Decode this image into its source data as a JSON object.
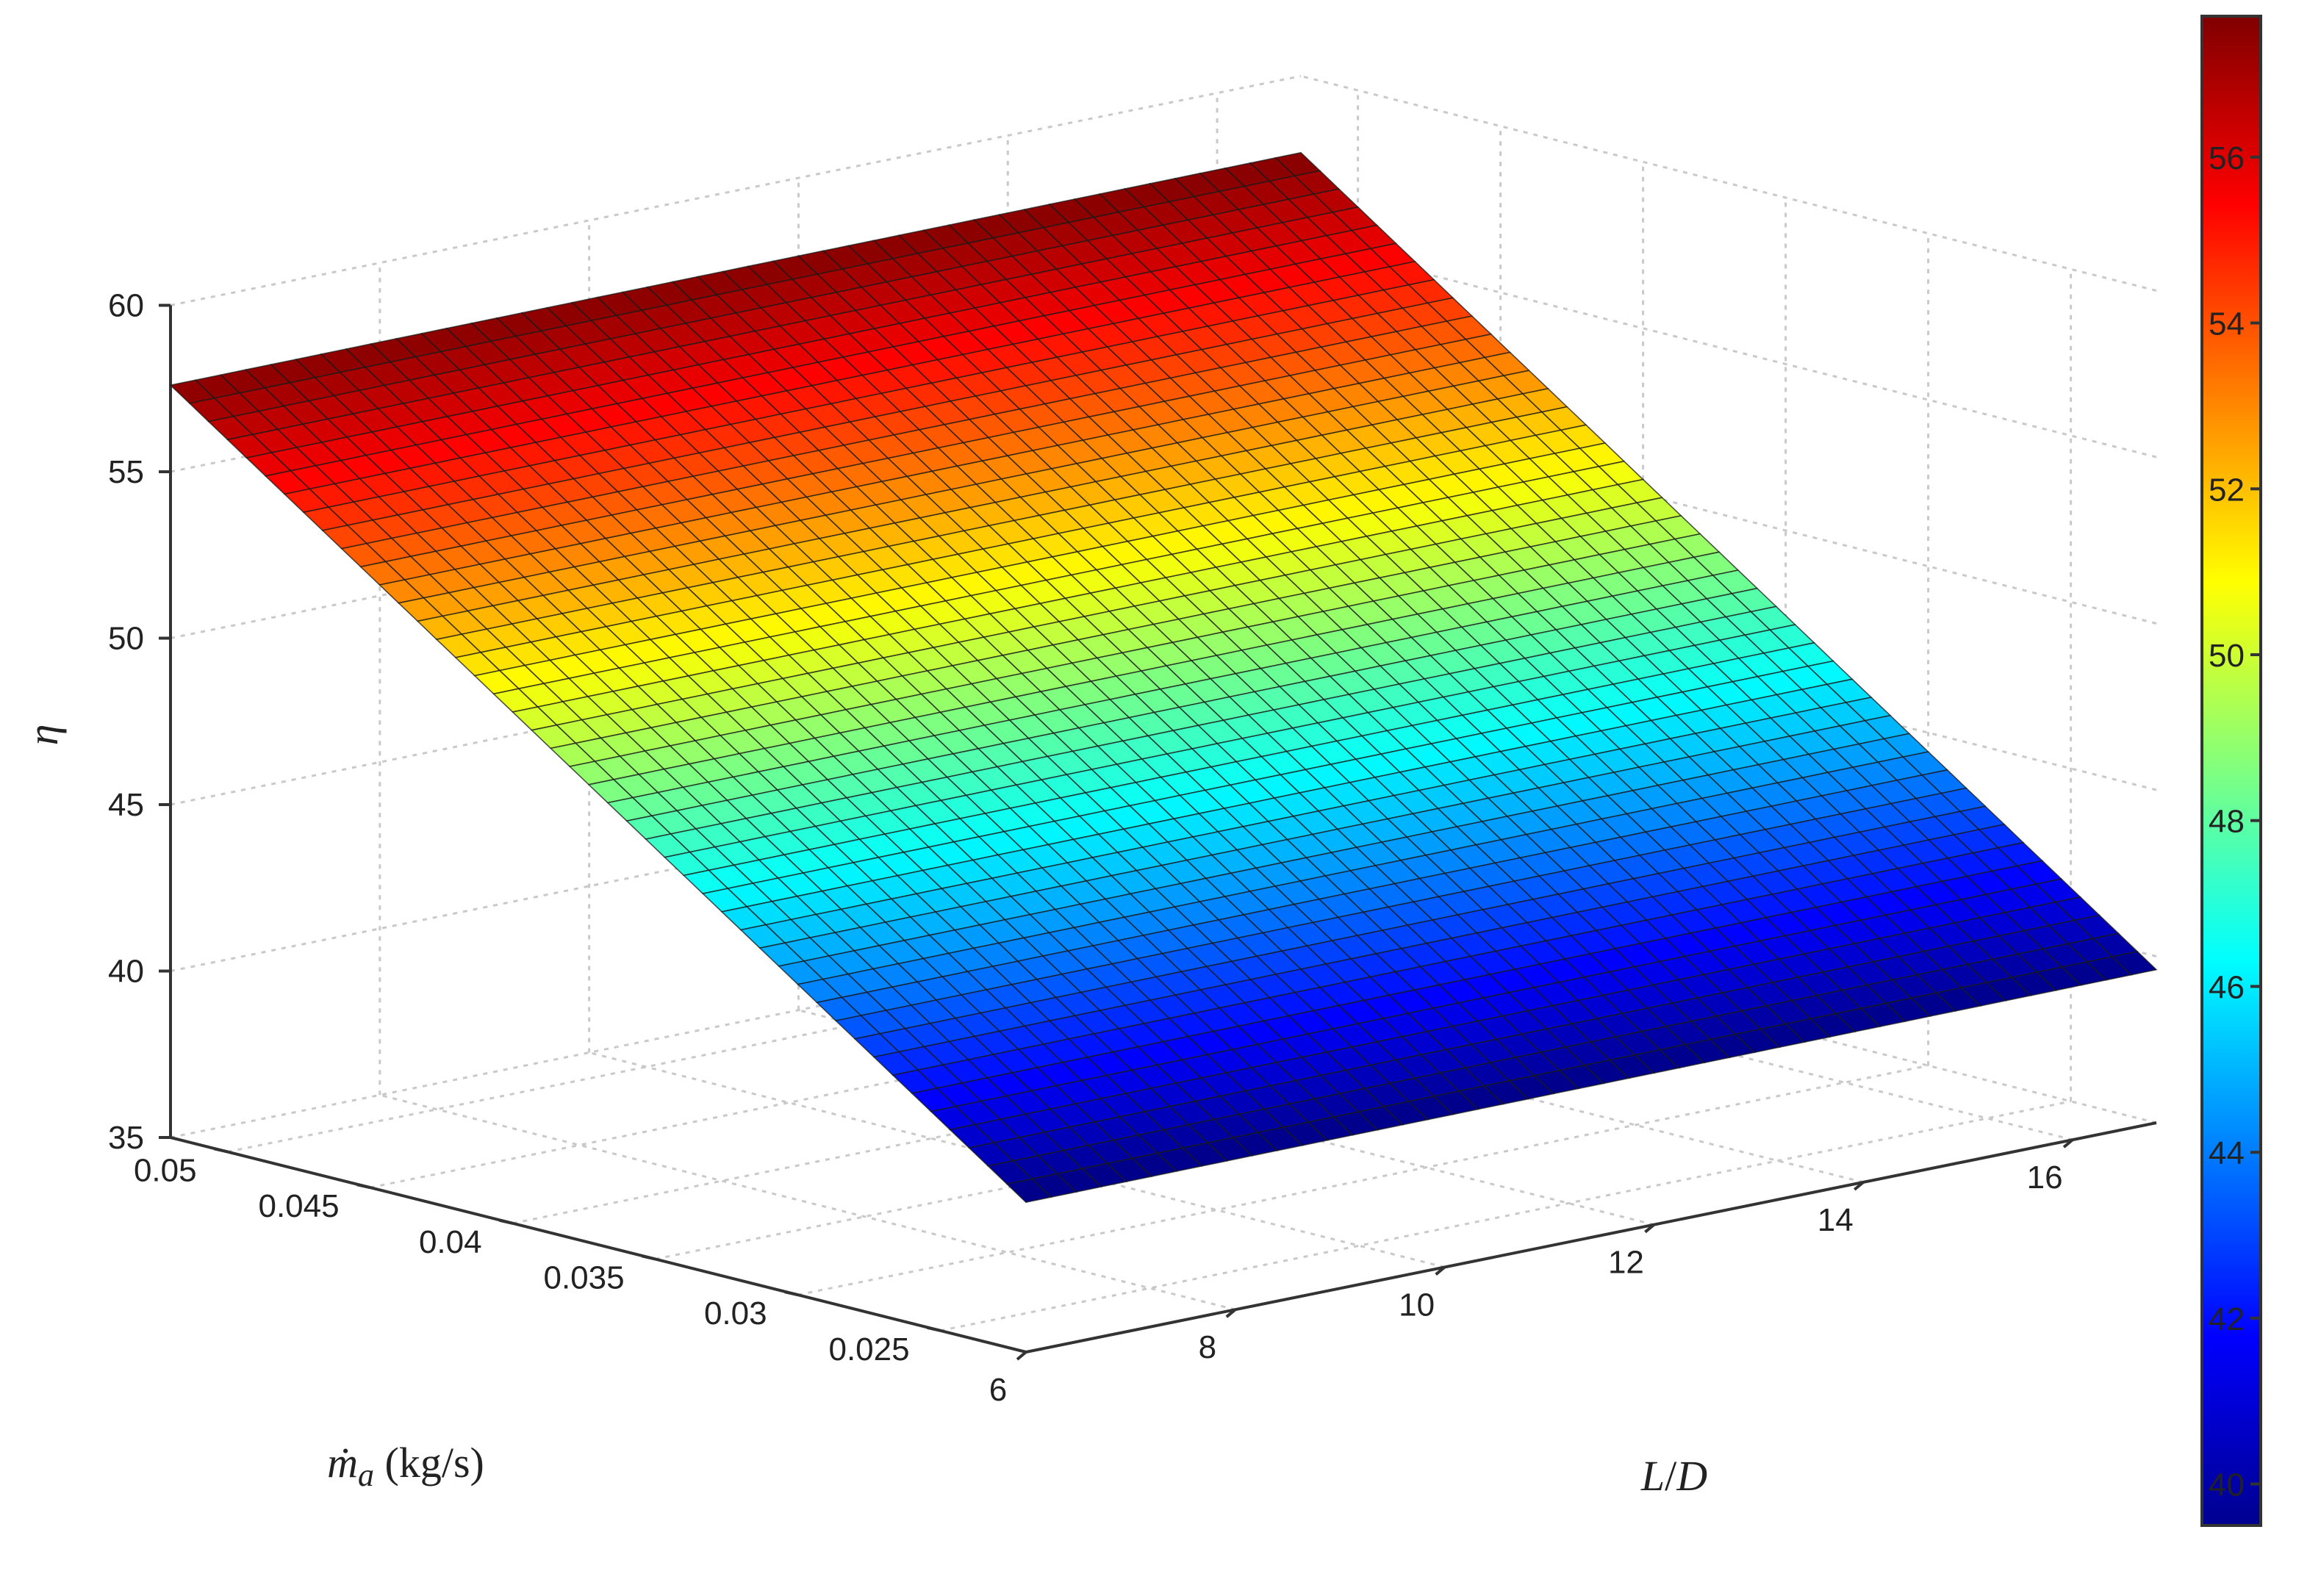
{
  "chart_data": {
    "type": "surface",
    "x_axis": {
      "label_parts": [
        "L",
        "/",
        "D"
      ],
      "ticks": [
        6,
        8,
        10,
        12,
        14,
        16
      ],
      "range": [
        6,
        16.8
      ]
    },
    "y_axis": {
      "label_main": "ṁ",
      "label_sub": "a",
      "label_units": " (kg/s)",
      "ticks": [
        "0.025",
        "0.03",
        "0.035",
        "0.04",
        "0.045",
        "0.05"
      ],
      "range": [
        0.022,
        0.052
      ]
    },
    "z_axis": {
      "label": "η",
      "ticks": [
        35,
        40,
        45,
        50,
        55,
        60
      ],
      "range": [
        35,
        60
      ]
    },
    "surface": {
      "description_of_values": "eta varies linearly with mass flow rate, nearly constant across L/D",
      "corner_values": [
        {
          "L_D": 6,
          "m_a": 0.022,
          "eta": 39.5
        },
        {
          "L_D": 16.8,
          "m_a": 0.022,
          "eta": 39.6
        },
        {
          "L_D": 6,
          "m_a": 0.052,
          "eta": 57.6
        },
        {
          "L_D": 16.8,
          "m_a": 0.052,
          "eta": 57.7
        }
      ],
      "grid_nx": 45,
      "grid_ny": 45,
      "colormap": "jet"
    },
    "colorbar": {
      "ticks": [
        40,
        42,
        44,
        46,
        48,
        50,
        52,
        54,
        56
      ],
      "range": [
        39.5,
        57.7
      ]
    }
  }
}
